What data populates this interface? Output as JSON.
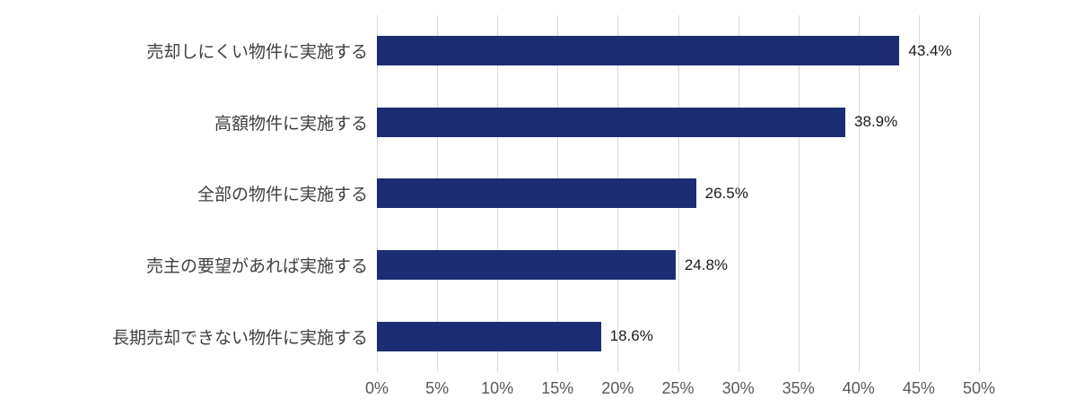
{
  "chart_data": {
    "type": "bar",
    "orientation": "horizontal",
    "title": "",
    "xlabel": "",
    "ylabel": "",
    "categories": [
      "売却しにくい物件に実施する",
      "高額物件に実施する",
      "全部の物件に実施する",
      "売主の要望があれば実施する",
      "長期売却できない物件に実施する"
    ],
    "values": [
      43.4,
      38.9,
      26.5,
      24.8,
      18.6
    ],
    "data_labels": [
      "43.4%",
      "38.9%",
      "26.5%",
      "24.8%",
      "18.6%"
    ],
    "x_ticks": [
      "0%",
      "5%",
      "10%",
      "15%",
      "20%",
      "25%",
      "30%",
      "35%",
      "40%",
      "45%",
      "50%"
    ],
    "x_tick_values": [
      0,
      5,
      10,
      15,
      20,
      25,
      30,
      35,
      40,
      45,
      50
    ],
    "xlim": [
      0,
      50
    ],
    "grid": "vertical-gridlines-on",
    "legend": "none",
    "colors": {
      "bar": "#1c2d73",
      "gridline": "#d9d9d9",
      "tick_label": "#595959",
      "category_label": "#3f3f3f",
      "data_label": "#1a1a1a",
      "background": "#ffffff"
    }
  }
}
